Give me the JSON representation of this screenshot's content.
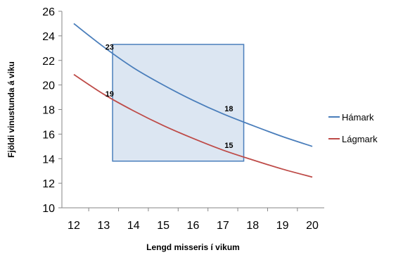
{
  "chart_data": {
    "type": "line",
    "title": "",
    "xlabel": "Lengd misseris í vikum",
    "ylabel": "Fjöldi vinustunda á viku",
    "xlim": [
      11.6,
      20.4
    ],
    "ylim": [
      10,
      26
    ],
    "xticks": [
      12,
      13,
      14,
      15,
      16,
      17,
      18,
      19,
      20
    ],
    "yticks": [
      10,
      12,
      14,
      16,
      18,
      20,
      22,
      24,
      26
    ],
    "grid": false,
    "legend": "right",
    "x": [
      12,
      13,
      14,
      15,
      16,
      17,
      18,
      19,
      20
    ],
    "series": [
      {
        "name": "Hámark",
        "color": "#4a7ebb",
        "values": [
          25.0,
          23.1,
          21.4,
          20.0,
          18.75,
          17.65,
          16.7,
          15.8,
          15.0
        ]
      },
      {
        "name": "Lágmark",
        "color": "#be4b48",
        "values": [
          20.85,
          19.25,
          17.9,
          16.7,
          15.65,
          14.7,
          13.9,
          13.15,
          12.5
        ]
      }
    ],
    "highlight_box": {
      "x_range": [
        13.3,
        17.7
      ],
      "y_range": [
        13.8,
        23.3
      ],
      "fill": "#dce6f2",
      "stroke": "#4a7ebb"
    },
    "annotations": [
      {
        "text": "23",
        "x": 13.2,
        "y": 23.1
      },
      {
        "text": "19",
        "x": 13.2,
        "y": 19.3
      },
      {
        "text": "18",
        "x": 17.2,
        "y": 18.1
      },
      {
        "text": "15",
        "x": 17.2,
        "y": 15.1
      }
    ]
  }
}
